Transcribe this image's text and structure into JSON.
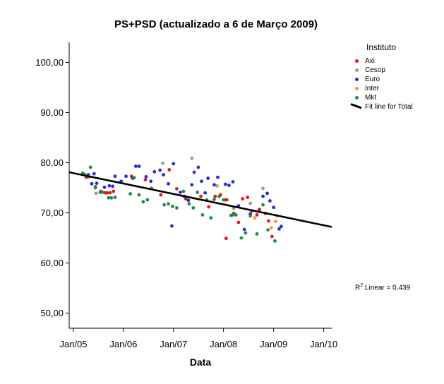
{
  "chart_data": {
    "type": "scatter",
    "title": "PS+PSD (actualizado a 6 de Março 2009)",
    "xlabel": "Data",
    "ylabel": "",
    "x_ticks": [
      "Jan/05",
      "Jan/06",
      "Jan/07",
      "Jan/08",
      "Jan/09",
      "Jan/10"
    ],
    "y_ticks": [
      "50,00",
      "60,00",
      "70,00",
      "80,00",
      "90,00",
      "100,00"
    ],
    "xlim": [
      "2004-12-01",
      "2010-03-01"
    ],
    "ylim": [
      47,
      104
    ],
    "legend_title": "Instituto",
    "legend_position": "right",
    "grid": false,
    "series": [
      {
        "name": "Axi",
        "color": "#e8141a",
        "points": [
          [
            "2005-04-05",
            77.1
          ],
          [
            "2005-06-10",
            75.2
          ],
          [
            "2005-07-20",
            74.3
          ],
          [
            "2005-08-20",
            74.0
          ],
          [
            "2005-09-05",
            74.0
          ],
          [
            "2005-09-25",
            74.0
          ],
          [
            "2005-10-20",
            74.3
          ],
          [
            "2006-03-01",
            77.3
          ],
          [
            "2006-06-10",
            76.6
          ],
          [
            "2006-10-01",
            73.6
          ],
          [
            "2006-12-01",
            78.6
          ],
          [
            "2007-01-25",
            74.8
          ],
          [
            "2007-04-01",
            72.8
          ],
          [
            "2007-07-20",
            73.3
          ],
          [
            "2007-09-15",
            71.2
          ],
          [
            "2007-11-01",
            73.3
          ],
          [
            "2007-12-10",
            73.6
          ],
          [
            "2008-01-10",
            72.6
          ],
          [
            "2008-01-25",
            72.6
          ],
          [
            "2008-03-15",
            69.9
          ],
          [
            "2008-04-20",
            68.1
          ],
          [
            "2008-05-20",
            72.8
          ],
          [
            "2008-06-25",
            73.1
          ],
          [
            "2008-07-25",
            70.4
          ],
          [
            "2008-09-01",
            69.6
          ],
          [
            "2008-09-20",
            70.7
          ],
          [
            "2008-11-01",
            69.9
          ],
          [
            "2008-11-25",
            68.4
          ],
          [
            "2008-12-20",
            65.3
          ],
          [
            "2008-01-20",
            64.9
          ]
        ]
      },
      {
        "name": "Cesop",
        "color": "#9b9b9b",
        "points": [
          [
            "2005-06-15",
            73.9
          ],
          [
            "2006-10-15",
            79.9
          ],
          [
            "2007-05-15",
            80.9
          ],
          [
            "2007-11-15",
            75.4
          ],
          [
            "2008-03-15",
            70.9
          ],
          [
            "2008-07-15",
            71.9
          ],
          [
            "2008-10-15",
            74.9
          ]
        ]
      },
      {
        "name": "Euro",
        "color": "#2b2bd6",
        "points": [
          [
            "2005-04-20",
            77.6
          ],
          [
            "2005-05-15",
            75.8
          ],
          [
            "2005-06-01",
            77.8
          ],
          [
            "2005-06-20",
            75.9
          ],
          [
            "2005-08-15",
            75.1
          ],
          [
            "2005-09-20",
            75.4
          ],
          [
            "2005-10-15",
            75.3
          ],
          [
            "2005-11-01",
            77.3
          ],
          [
            "2005-12-15",
            76.3
          ],
          [
            "2006-01-20",
            77.3
          ],
          [
            "2006-03-10",
            76.9
          ],
          [
            "2006-04-01",
            79.3
          ],
          [
            "2006-04-25",
            79.3
          ],
          [
            "2006-06-15",
            77.2
          ],
          [
            "2006-07-20",
            76.3
          ],
          [
            "2006-08-15",
            78.2
          ],
          [
            "2006-09-25",
            78.5
          ],
          [
            "2006-10-20",
            77.6
          ],
          [
            "2006-11-25",
            75.8
          ],
          [
            "2006-12-20",
            67.4
          ],
          [
            "2007-01-01",
            79.8
          ],
          [
            "2007-02-20",
            74.1
          ],
          [
            "2007-03-20",
            73.3
          ],
          [
            "2007-04-20",
            72.5
          ],
          [
            "2007-05-15",
            75.6
          ],
          [
            "2007-06-01",
            78.1
          ],
          [
            "2007-07-01",
            79.1
          ],
          [
            "2007-07-25",
            76.3
          ],
          [
            "2007-08-20",
            74.0
          ],
          [
            "2007-09-10",
            76.9
          ],
          [
            "2007-10-25",
            75.6
          ],
          [
            "2007-11-20",
            77.1
          ],
          [
            "2008-01-15",
            75.7
          ],
          [
            "2008-02-10",
            75.5
          ],
          [
            "2008-03-10",
            76.2
          ],
          [
            "2008-04-20",
            71.4
          ],
          [
            "2008-06-01",
            66.7
          ],
          [
            "2008-07-15",
            69.8
          ],
          [
            "2008-09-15",
            70.3
          ],
          [
            "2008-10-15",
            73.3
          ],
          [
            "2008-11-15",
            73.9
          ],
          [
            "2008-12-05",
            72.4
          ],
          [
            "2009-01-01",
            71.1
          ],
          [
            "2009-02-10",
            66.8
          ],
          [
            "2009-02-25",
            67.3
          ]
        ]
      },
      {
        "name": "Inter",
        "color": "#f39a3c",
        "points": [
          [
            "2008-08-15",
            69.0
          ],
          [
            "2008-12-15",
            67.0
          ],
          [
            "2009-01-15",
            68.3
          ],
          [
            "2009-01-25",
            69.4
          ]
        ]
      },
      {
        "name": "Mkt",
        "color": "#1e8c46",
        "points": [
          [
            "2005-03-10",
            77.9
          ],
          [
            "2005-03-25",
            77.6
          ],
          [
            "2005-04-25",
            77.2
          ],
          [
            "2005-05-05",
            79.1
          ],
          [
            "2005-06-10",
            75.0
          ],
          [
            "2005-07-15",
            74.1
          ],
          [
            "2005-08-01",
            74.1
          ],
          [
            "2005-09-15",
            73.0
          ],
          [
            "2005-10-05",
            73.0
          ],
          [
            "2005-11-01",
            73.1
          ],
          [
            "2006-02-20",
            73.8
          ],
          [
            "2006-03-20",
            77.0
          ],
          [
            "2006-04-25",
            73.6
          ],
          [
            "2006-05-25",
            72.2
          ],
          [
            "2006-06-25",
            72.6
          ],
          [
            "2006-07-25",
            74.9
          ],
          [
            "2006-10-25",
            71.6
          ],
          [
            "2006-11-25",
            71.8
          ],
          [
            "2006-12-25",
            71.3
          ],
          [
            "2007-01-25",
            71.0
          ],
          [
            "2007-03-15",
            74.3
          ],
          [
            "2007-04-25",
            71.8
          ],
          [
            "2007-05-25",
            71.0
          ],
          [
            "2007-06-25",
            74.1
          ],
          [
            "2007-08-01",
            69.6
          ],
          [
            "2007-09-01",
            72.6
          ],
          [
            "2007-10-01",
            69.0
          ],
          [
            "2007-10-25",
            72.7
          ],
          [
            "2007-12-01",
            73.3
          ],
          [
            "2008-01-01",
            72.6
          ],
          [
            "2008-02-25",
            69.5
          ],
          [
            "2008-03-10",
            69.6
          ],
          [
            "2008-04-01",
            69.6
          ],
          [
            "2008-05-10",
            65.0
          ],
          [
            "2008-06-10",
            66.0
          ],
          [
            "2008-07-15",
            69.4
          ],
          [
            "2008-09-01",
            65.8
          ],
          [
            "2008-10-15",
            71.6
          ],
          [
            "2008-11-20",
            66.6
          ],
          [
            "2009-01-10",
            64.4
          ]
        ]
      }
    ],
    "fit_line": {
      "name": "Fit line for Total",
      "from": [
        "2004-12-01",
        78.1
      ],
      "to": [
        "2010-03-01",
        67.2
      ],
      "annotation": "R",
      "annotation_sup": "2",
      "annotation_rest": " Linear = 0,439"
    }
  }
}
